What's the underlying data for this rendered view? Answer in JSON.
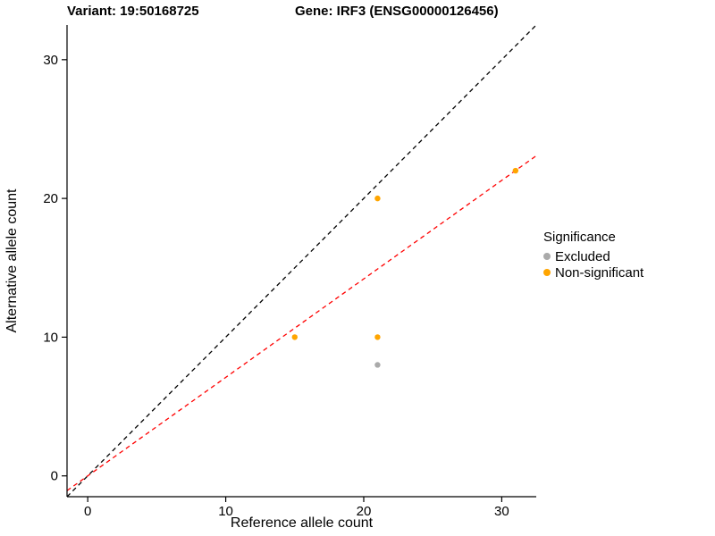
{
  "chart_data": {
    "type": "scatter",
    "title_left": "Variant: 19:50168725",
    "title_right": "Gene: IRF3 (ENSG00000126456)",
    "xlabel": "Reference allele count",
    "ylabel": "Alternative allele count",
    "xlim": [
      -1.5,
      32.5
    ],
    "ylim": [
      -1.5,
      32.5
    ],
    "xticks": [
      0,
      10,
      20,
      30
    ],
    "yticks": [
      0,
      10,
      20,
      30
    ],
    "grid": false,
    "legend": {
      "title": "Significance",
      "position": "right",
      "entries": [
        {
          "label": "Excluded",
          "color": "#AAAAAA"
        },
        {
          "label": "Non-significant",
          "color": "#FFA500"
        }
      ]
    },
    "series": [
      {
        "name": "Excluded",
        "color": "#AAAAAA",
        "points": [
          [
            21,
            8
          ]
        ]
      },
      {
        "name": "Non-significant",
        "color": "#FFA500",
        "points": [
          [
            15,
            10
          ],
          [
            21,
            10
          ],
          [
            21,
            20
          ],
          [
            31,
            22
          ]
        ]
      }
    ],
    "lines": [
      {
        "name": "identity-line",
        "color": "#000000",
        "dashed": true,
        "slope": 1.0,
        "intercept": 0
      },
      {
        "name": "fit-line",
        "color": "#FF0000",
        "dashed": true,
        "slope": 0.71,
        "intercept": 0
      }
    ]
  }
}
